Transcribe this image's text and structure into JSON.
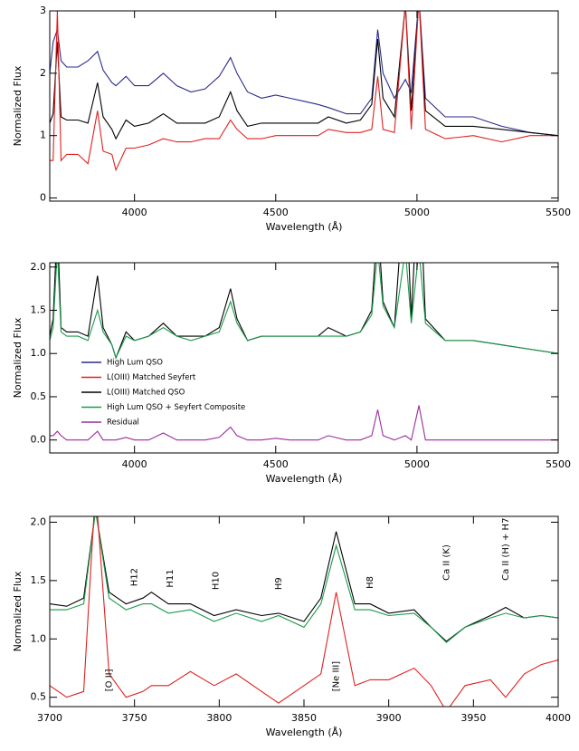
{
  "chart_data": [
    {
      "type": "line",
      "xlabel": "Wavelength (Å)",
      "ylabel": "Normalized Flux",
      "xlim": [
        3700,
        5500
      ],
      "ylim": [
        -0.05,
        3.0
      ],
      "xticks": [
        4000,
        4500,
        5000,
        5500
      ],
      "yticks": [
        0,
        1,
        2,
        3
      ],
      "x": [
        3700,
        3712,
        3727,
        3740,
        3760,
        3800,
        3835,
        3869,
        3889,
        3920,
        3934,
        3970,
        4000,
        4050,
        4102,
        4150,
        4200,
        4250,
        4300,
        4340,
        4363,
        4400,
        4450,
        4500,
        4550,
        4600,
        4650,
        4686,
        4750,
        4800,
        4840,
        4861,
        4880,
        4920,
        4959,
        4980,
        5007,
        5030,
        5100,
        5200,
        5300,
        5400,
        5500
      ],
      "series": [
        {
          "color": "#2a2a8c",
          "values": [
            2.0,
            2.5,
            2.7,
            2.2,
            2.1,
            2.1,
            2.2,
            2.35,
            2.05,
            1.85,
            1.8,
            1.95,
            1.8,
            1.8,
            2.0,
            1.8,
            1.7,
            1.75,
            1.95,
            2.25,
            2.0,
            1.7,
            1.6,
            1.65,
            1.6,
            1.55,
            1.5,
            1.45,
            1.35,
            1.35,
            1.6,
            2.7,
            2.0,
            1.6,
            1.9,
            1.7,
            3.2,
            1.6,
            1.3,
            1.3,
            1.15,
            1.05,
            1.0
          ]
        },
        {
          "color": "#000000",
          "values": [
            1.2,
            1.35,
            2.5,
            1.3,
            1.25,
            1.25,
            1.2,
            1.85,
            1.3,
            1.1,
            0.95,
            1.25,
            1.15,
            1.2,
            1.35,
            1.2,
            1.2,
            1.2,
            1.3,
            1.7,
            1.4,
            1.15,
            1.2,
            1.2,
            1.2,
            1.2,
            1.2,
            1.3,
            1.2,
            1.25,
            1.5,
            2.55,
            1.6,
            1.3,
            3.1,
            1.4,
            3.2,
            1.4,
            1.15,
            1.15,
            1.1,
            1.05,
            1.0
          ]
        },
        {
          "color": "#e02020",
          "values": [
            0.6,
            0.6,
            3.0,
            0.6,
            0.7,
            0.7,
            0.55,
            1.4,
            0.75,
            0.7,
            0.45,
            0.8,
            0.8,
            0.85,
            0.95,
            0.9,
            0.9,
            0.95,
            0.95,
            1.25,
            1.1,
            0.95,
            0.95,
            1.0,
            1.0,
            1.0,
            1.0,
            1.1,
            1.05,
            1.05,
            1.1,
            1.95,
            1.1,
            1.05,
            3.1,
            1.1,
            3.2,
            1.1,
            0.95,
            1.0,
            0.9,
            1.0,
            1.0
          ]
        }
      ]
    },
    {
      "type": "line",
      "xlabel": "Wavelength (Å)",
      "ylabel": "Normalized Flux",
      "xlim": [
        3700,
        5500
      ],
      "ylim": [
        -0.15,
        2.05
      ],
      "xticks": [
        4000,
        4500,
        5000,
        5500
      ],
      "yticks": [
        {
          "value": 0,
          "label": "0.0"
        },
        0.5,
        {
          "value": 1,
          "label": "1.0"
        },
        1.5,
        {
          "value": 2,
          "label": "2.0"
        }
      ],
      "x": [
        3700,
        3712,
        3727,
        3740,
        3760,
        3800,
        3835,
        3869,
        3889,
        3920,
        3934,
        3970,
        4000,
        4050,
        4102,
        4150,
        4200,
        4250,
        4300,
        4340,
        4363,
        4400,
        4450,
        4500,
        4550,
        4600,
        4650,
        4686,
        4750,
        4800,
        4840,
        4861,
        4880,
        4920,
        4959,
        4980,
        5007,
        5030,
        5100,
        5200,
        5300,
        5400,
        5500
      ],
      "series": [
        {
          "color": "#000000",
          "values": [
            1.2,
            1.4,
            2.5,
            1.3,
            1.25,
            1.25,
            1.2,
            1.9,
            1.3,
            1.1,
            0.95,
            1.25,
            1.15,
            1.2,
            1.35,
            1.2,
            1.2,
            1.2,
            1.3,
            1.75,
            1.4,
            1.15,
            1.2,
            1.2,
            1.2,
            1.2,
            1.2,
            1.3,
            1.2,
            1.25,
            1.5,
            2.55,
            1.6,
            1.3,
            3.1,
            1.4,
            3.2,
            1.4,
            1.15,
            1.15,
            1.1,
            1.05,
            1.0
          ]
        },
        {
          "color": "#1a9a4a",
          "values": [
            1.15,
            1.3,
            2.2,
            1.25,
            1.2,
            1.2,
            1.15,
            1.5,
            1.25,
            1.1,
            0.95,
            1.2,
            1.15,
            1.2,
            1.3,
            1.2,
            1.15,
            1.2,
            1.25,
            1.6,
            1.35,
            1.15,
            1.2,
            1.2,
            1.2,
            1.2,
            1.2,
            1.2,
            1.2,
            1.25,
            1.45,
            2.2,
            1.55,
            1.3,
            2.2,
            1.35,
            2.2,
            1.35,
            1.15,
            1.15,
            1.1,
            1.05,
            1.0
          ]
        },
        {
          "color": "#9a2a9a",
          "values": [
            0.05,
            0.05,
            0.1,
            0.05,
            0.0,
            0.0,
            0.0,
            0.1,
            0.0,
            0.0,
            0.0,
            0.03,
            0.0,
            0.0,
            0.08,
            0.0,
            0.0,
            0.0,
            0.03,
            0.15,
            0.05,
            0.0,
            0.0,
            0.02,
            0.0,
            0.0,
            0.0,
            0.05,
            0.0,
            0.0,
            0.05,
            0.35,
            0.05,
            0.0,
            0.05,
            0.0,
            0.4,
            0.0,
            0.0,
            0.0,
            0.0,
            0.0,
            0.0
          ]
        }
      ],
      "legend": [
        {
          "name": "High Lum QSO",
          "color": "#2a2a8c"
        },
        {
          "name": "L(OIII) Matched Seyfert",
          "color": "#e02020"
        },
        {
          "name": "L(OIII) Matched QSO",
          "color": "#000000"
        },
        {
          "name": "High Lum QSO + Seyfert Composite",
          "color": "#1a9a4a"
        },
        {
          "name": "Residual",
          "color": "#9a2a9a"
        }
      ]
    },
    {
      "type": "line",
      "xlabel": "Wavelength (Å)",
      "ylabel": "Normalized Flux",
      "xlim": [
        3700,
        4000
      ],
      "ylim": [
        0.42,
        2.05
      ],
      "xticks": [
        3700,
        3750,
        3800,
        3850,
        3900,
        3950,
        4000
      ],
      "yticks": [
        0.5,
        {
          "value": 1,
          "label": "1.0"
        },
        1.5,
        {
          "value": 2,
          "label": "2.0"
        }
      ],
      "x": [
        3700,
        3710,
        3720,
        3727,
        3735,
        3745,
        3755,
        3760,
        3770,
        3783,
        3797,
        3810,
        3825,
        3835,
        3850,
        3860,
        3869,
        3880,
        3889,
        3900,
        3915,
        3925,
        3934,
        3945,
        3960,
        3969,
        3980,
        3990,
        4000
      ],
      "series": [
        {
          "color": "#000000",
          "values": [
            1.3,
            1.28,
            1.35,
            2.1,
            1.4,
            1.3,
            1.35,
            1.4,
            1.3,
            1.3,
            1.2,
            1.25,
            1.2,
            1.22,
            1.15,
            1.35,
            1.92,
            1.3,
            1.3,
            1.22,
            1.25,
            1.1,
            0.98,
            1.1,
            1.2,
            1.27,
            1.18,
            1.2,
            1.18
          ]
        },
        {
          "color": "#1a9a4a",
          "values": [
            1.25,
            1.25,
            1.3,
            2.1,
            1.35,
            1.25,
            1.3,
            1.3,
            1.22,
            1.25,
            1.15,
            1.22,
            1.15,
            1.2,
            1.1,
            1.3,
            1.8,
            1.25,
            1.25,
            1.2,
            1.22,
            1.1,
            0.97,
            1.1,
            1.18,
            1.22,
            1.18,
            1.2,
            1.18
          ]
        },
        {
          "color": "#e02020",
          "values": [
            0.6,
            0.5,
            0.55,
            2.3,
            0.7,
            0.5,
            0.55,
            0.6,
            0.6,
            0.72,
            0.6,
            0.7,
            0.55,
            0.45,
            0.6,
            0.7,
            1.4,
            0.6,
            0.65,
            0.65,
            0.75,
            0.6,
            0.38,
            0.6,
            0.65,
            0.5,
            0.7,
            0.78,
            0.82
          ]
        }
      ],
      "annotations": [
        {
          "text": "[O II]",
          "x": 3735,
          "y": 0.55
        },
        {
          "text": "H12",
          "x": 3750,
          "y": 1.45
        },
        {
          "text": "H11",
          "x": 3771,
          "y": 1.44
        },
        {
          "text": "H10",
          "x": 3798,
          "y": 1.42
        },
        {
          "text": "H9",
          "x": 3835,
          "y": 1.42
        },
        {
          "text": "[Ne III]",
          "x": 3869,
          "y": 0.55
        },
        {
          "text": "H8",
          "x": 3889,
          "y": 1.43
        },
        {
          "text": "Ca II (K)",
          "x": 3934,
          "y": 1.5
        },
        {
          "text": "Ca II (H) + H7",
          "x": 3969,
          "y": 1.5
        }
      ]
    }
  ]
}
